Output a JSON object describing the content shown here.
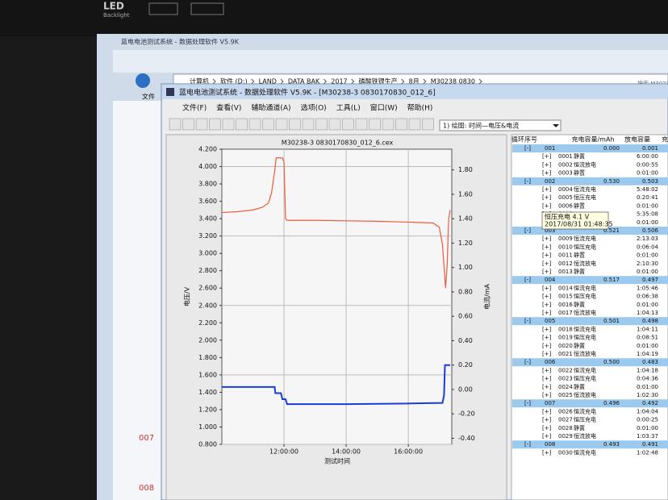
{
  "bezel": {
    "brand": "LED",
    "sub": "Backlight"
  },
  "background_window": {
    "title": "蓝电电池测试系统 - 数据处理软件 V5.9K",
    "breadcrumb": [
      "计算机",
      "软件 (D:)",
      "LAND",
      "DATA BAK",
      "2017",
      "磷酸铁锂生产",
      "8月",
      "M30238 0830"
    ],
    "search": "搜索 M3023",
    "menu_file": "文件",
    "left_items": [
      "007",
      "008"
    ]
  },
  "window": {
    "title": "蓝电电池测试系统 - 数据处理软件 V5.9K - [M30238-3 0830170830_012_6]",
    "menu": [
      "文件(F)",
      "查看(V)",
      "辅助通道(A)",
      "选项(O)",
      "工具(L)",
      "窗口(W)",
      "帮助(H)"
    ],
    "plot_selector": "1) 绘图: 时间—电压&电流"
  },
  "chart_data": {
    "type": "line",
    "title": "M30238-3 0830170830_012_6.cex",
    "ylabel": "电压/V",
    "y2label": "电流/mA",
    "xlabel": "测试时间",
    "xlim": [
      10.0,
      17.4
    ],
    "ylim": [
      0.8,
      4.2
    ],
    "y2lim": [
      -0.45,
      1.97
    ],
    "grid": true,
    "xticks": [
      {
        "value": 12,
        "label": "12:00:00"
      },
      {
        "value": 14,
        "label": "14:00:00"
      },
      {
        "value": 16,
        "label": "16:00:00"
      }
    ],
    "yticks": [
      {
        "value": 0.8,
        "label": "0.800"
      },
      {
        "value": 1.0,
        "label": "1.000"
      },
      {
        "value": 1.2,
        "label": "1.200"
      },
      {
        "value": 1.4,
        "label": "1.400"
      },
      {
        "value": 1.6,
        "label": "1.600"
      },
      {
        "value": 1.8,
        "label": "1.800"
      },
      {
        "value": 2.0,
        "label": "2.000"
      },
      {
        "value": 2.2,
        "label": "2.200"
      },
      {
        "value": 2.4,
        "label": "2.400"
      },
      {
        "value": 2.6,
        "label": "2.600"
      },
      {
        "value": 2.8,
        "label": "2.800"
      },
      {
        "value": 3.0,
        "label": "3.000"
      },
      {
        "value": 3.2,
        "label": "3.200"
      },
      {
        "value": 3.4,
        "label": "3.400"
      },
      {
        "value": 3.6,
        "label": "3.600"
      },
      {
        "value": 3.8,
        "label": "3.800"
      },
      {
        "value": 4.0,
        "label": "4.000"
      },
      {
        "value": 4.2,
        "label": "4.200"
      }
    ],
    "y2ticks": [
      {
        "value": -0.4,
        "label": "-0.40"
      },
      {
        "value": -0.2,
        "label": "-0.20"
      },
      {
        "value": 0,
        "label": "0.00"
      },
      {
        "value": 0.2,
        "label": "0.20"
      },
      {
        "value": 0.4,
        "label": "0.40"
      },
      {
        "value": 0.6,
        "label": "0.60"
      },
      {
        "value": 0.8,
        "label": "0.80"
      },
      {
        "value": 1.0,
        "label": "1.00"
      },
      {
        "value": 1.2,
        "label": "1.20"
      },
      {
        "value": 1.4,
        "label": "1.40"
      },
      {
        "value": 1.6,
        "label": "1.60"
      },
      {
        "value": 1.8,
        "label": "1.80"
      }
    ],
    "series": [
      {
        "color": "#f05a3c",
        "x": [
          10.0,
          10.5,
          11.0,
          11.3,
          11.5,
          11.6,
          11.7,
          11.75,
          11.95,
          12.0,
          12.05,
          12.1,
          13.0,
          14.0,
          15.0,
          16.0,
          16.8,
          17.0,
          17.1,
          17.2,
          17.25,
          17.3,
          17.35
        ],
        "values": [
          3.47,
          3.48,
          3.5,
          3.53,
          3.58,
          3.7,
          3.95,
          4.1,
          4.1,
          4.05,
          3.4,
          3.38,
          3.38,
          3.375,
          3.37,
          3.36,
          3.35,
          3.3,
          3.1,
          2.6,
          2.85,
          3.4,
          3.5
        ]
      },
      {
        "color": "#1a3cd8",
        "axis": "y2",
        "x": [
          10.0,
          11.7,
          11.72,
          11.9,
          11.95,
          12.05,
          12.1,
          14.0,
          16.0,
          17.1,
          17.15,
          17.18,
          17.35
        ],
        "values": [
          0.02,
          0.02,
          -0.03,
          -0.03,
          -0.08,
          -0.08,
          -0.12,
          -0.12,
          -0.115,
          -0.11,
          -0.05,
          0.2,
          0.2
        ]
      }
    ]
  },
  "tooltip": {
    "line1": "恒压充电  4.1 V",
    "line2": "2017/08/31 01:48:35"
  },
  "cycle_table": {
    "headers": [
      "循环序号",
      "充电容量/mAh",
      "放电容量",
      "充"
    ],
    "groups": [
      {
        "toggle": "[-]",
        "id": "001",
        "charge": "0.000",
        "discharge": "0.001",
        "steps": [
          [
            "[+]",
            "0001",
            "静置",
            "6:00:00"
          ],
          [
            "[+]",
            "0002",
            "恒流放电",
            "0:00:55"
          ],
          [
            "[+]",
            "0003",
            "静置",
            "0:01:00"
          ]
        ]
      },
      {
        "toggle": "[-]",
        "id": "002",
        "charge": "0.530",
        "discharge": "0.503",
        "steps": [
          [
            "[+]",
            "0004",
            "恒流充电",
            "5:48:02"
          ],
          [
            "[+]",
            "0005",
            "恒压充电",
            "0:20:41"
          ],
          [
            "[+]",
            "0006",
            "静置",
            "0:01:00"
          ],
          [
            "[+]",
            "0007",
            "",
            "5:35:08"
          ],
          [
            "[+]",
            "0008",
            "",
            "0:01:00"
          ]
        ]
      },
      {
        "toggle": "[-]",
        "id": "003",
        "charge": "0.521",
        "discharge": "0.506",
        "steps": [
          [
            "[+]",
            "0009",
            "恒流充电",
            "2:13:03"
          ],
          [
            "[+]",
            "0010",
            "恒压充电",
            "0:06:04"
          ],
          [
            "[+]",
            "0011",
            "静置",
            "0:01:00"
          ],
          [
            "[+]",
            "0012",
            "恒流放电",
            "2:10:30"
          ],
          [
            "[+]",
            "0013",
            "静置",
            "0:01:00"
          ]
        ]
      },
      {
        "toggle": "[-]",
        "id": "004",
        "charge": "0.517",
        "discharge": "0.497",
        "steps": [
          [
            "[+]",
            "0014",
            "恒流充电",
            "1:05:46"
          ],
          [
            "[+]",
            "0015",
            "恒压充电",
            "0:06:38"
          ],
          [
            "[+]",
            "0016",
            "静置",
            "0:01:00"
          ],
          [
            "[+]",
            "0017",
            "恒流放电",
            "1:04:13"
          ]
        ]
      },
      {
        "toggle": "[-]",
        "id": "005",
        "charge": "0.501",
        "discharge": "0.498",
        "steps": [
          [
            "[+]",
            "0018",
            "恒流充电",
            "1:04:11"
          ],
          [
            "[+]",
            "0019",
            "恒压充电",
            "0:08:51"
          ],
          [
            "[+]",
            "0020",
            "静置",
            "0:01:00"
          ],
          [
            "[+]",
            "0021",
            "恒流放电",
            "1:04:19"
          ]
        ]
      },
      {
        "toggle": "[-]",
        "id": "006",
        "charge": "0.500",
        "discharge": "0.483",
        "steps": [
          [
            "[+]",
            "0022",
            "恒流充电",
            "1:04:18"
          ],
          [
            "[+]",
            "0023",
            "恒压充电",
            "0:04:36"
          ],
          [
            "[+]",
            "0024",
            "静置",
            "0:01:00"
          ],
          [
            "[+]",
            "0025",
            "恒流放电",
            "1:02:30"
          ]
        ]
      },
      {
        "toggle": "[-]",
        "id": "007",
        "charge": "0.496",
        "discharge": "0.492",
        "steps": [
          [
            "[+]",
            "0026",
            "恒流充电",
            "1:04:04"
          ],
          [
            "[+]",
            "0027",
            "恒压充电",
            "0:00:25"
          ],
          [
            "[+]",
            "0028",
            "静置",
            "0:01:00"
          ],
          [
            "[+]",
            "0029",
            "恒流放电",
            "1:03:37"
          ]
        ]
      },
      {
        "toggle": "[-]",
        "id": "008",
        "charge": "0.493",
        "discharge": "0.491",
        "steps": [
          [
            "[+]",
            "0030",
            "恒流充电",
            "1:02:48"
          ]
        ]
      }
    ]
  }
}
